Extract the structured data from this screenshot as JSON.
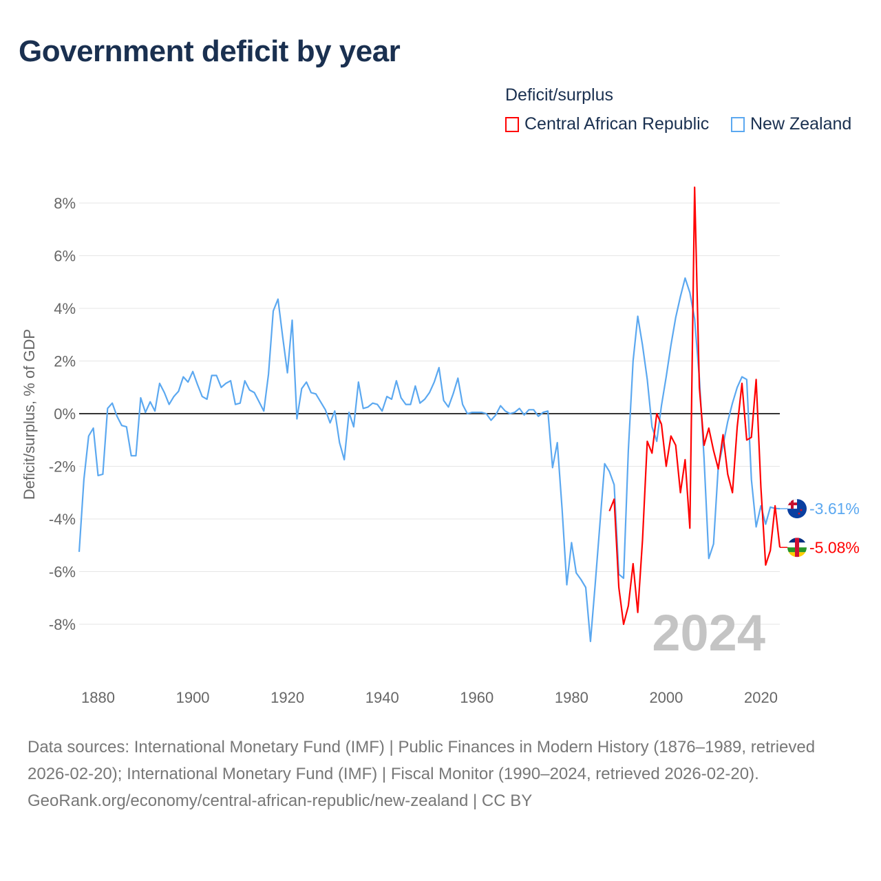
{
  "title": "Government deficit by year",
  "legend": {
    "title": "Deficit/surplus",
    "items": [
      {
        "label": "Central African Republic",
        "color": "#ff0000"
      },
      {
        "label": "New Zealand",
        "color": "#5ba8f0"
      }
    ]
  },
  "chart_data": {
    "type": "line",
    "title": "Government deficit by year",
    "xlabel": "",
    "ylabel": "Deficit/surplus, % of GDP",
    "xlim": [
      1876,
      2024
    ],
    "ylim": [
      -10,
      9
    ],
    "yticks": [
      8,
      6,
      4,
      2,
      0,
      -2,
      -4,
      -6,
      -8
    ],
    "ytick_labels": [
      "8%",
      "6%",
      "4%",
      "2%",
      "0%",
      "-2%",
      "-4%",
      "-6%",
      "-8%"
    ],
    "xticks": [
      1880,
      1900,
      1920,
      1940,
      1960,
      1980,
      2000,
      2020
    ],
    "xtick_labels": [
      "1880",
      "1900",
      "1920",
      "1940",
      "1960",
      "1980",
      "2000",
      "2020"
    ],
    "grid": true,
    "legend_position": "top-right",
    "year_watermark": "2024",
    "series": [
      {
        "name": "New Zealand",
        "color": "#5ba8f0",
        "start_year": 1876,
        "end_label": "-3.61%",
        "flag": "new-zealand",
        "values": [
          -5.25,
          -2.5,
          -0.85,
          -0.55,
          -2.35,
          -2.3,
          0.2,
          0.4,
          -0.1,
          -0.45,
          -0.5,
          -1.6,
          -1.6,
          0.6,
          0.05,
          0.45,
          0.1,
          1.15,
          0.8,
          0.35,
          0.65,
          0.85,
          1.4,
          1.2,
          1.6,
          1.1,
          0.65,
          0.55,
          1.45,
          1.45,
          1.0,
          1.15,
          1.25,
          0.35,
          0.4,
          1.25,
          0.9,
          0.8,
          0.45,
          0.1,
          1.5,
          3.9,
          4.35,
          2.9,
          1.55,
          3.55,
          -0.2,
          0.95,
          1.2,
          0.8,
          0.75,
          0.45,
          0.15,
          -0.35,
          0.1,
          -1.1,
          -1.75,
          0.05,
          -0.5,
          1.2,
          0.2,
          0.25,
          0.4,
          0.35,
          0.1,
          0.65,
          0.55,
          1.25,
          0.6,
          0.35,
          0.35,
          1.05,
          0.4,
          0.55,
          0.8,
          1.2,
          1.75,
          0.5,
          0.25,
          0.75,
          1.35,
          0.35,
          0.0,
          0.05,
          0.05,
          0.05,
          0.0,
          -0.25,
          -0.05,
          0.3,
          0.1,
          0.0,
          0.05,
          0.2,
          -0.05,
          0.15,
          0.15,
          -0.1,
          0.05,
          0.1,
          -2.05,
          -1.1,
          -3.6,
          -6.5,
          -4.9,
          -6.05,
          -6.3,
          -6.6,
          -8.65,
          -6.5,
          -4.2,
          -1.9,
          -2.2,
          -2.7,
          -6.1,
          -6.25,
          -1.4,
          2.0,
          3.7,
          2.6,
          1.3,
          -0.5,
          -1.05,
          0.3,
          1.4,
          2.6,
          3.65,
          4.45,
          5.15,
          4.6,
          3.6,
          1.35,
          -1.7,
          -5.5,
          -4.95,
          -2.0,
          -1.2,
          -0.3,
          0.4,
          1.0,
          1.4,
          1.3,
          -2.5,
          -4.3,
          -3.5,
          -4.2,
          -3.55,
          -3.6,
          -3.61
        ]
      },
      {
        "name": "Central African Republic",
        "color": "#ff0000",
        "start_year": 1988,
        "end_label": "-5.08%",
        "flag": "central-african-republic",
        "values": [
          -3.7,
          -3.25,
          -6.6,
          -8.0,
          -7.3,
          -5.7,
          -7.55,
          -4.8,
          -1.05,
          -1.5,
          0.0,
          -0.4,
          -2.0,
          -0.85,
          -1.2,
          -3.0,
          -1.75,
          -4.35,
          8.6,
          1.0,
          -1.2,
          -0.55,
          -1.4,
          -2.1,
          -0.8,
          -2.3,
          -3.0,
          -0.5,
          1.15,
          -1.0,
          -0.9,
          1.3,
          -2.8,
          -5.75,
          -5.2,
          -3.5,
          -5.08
        ]
      }
    ]
  },
  "footer": {
    "sources": "Data sources: International Monetary Fund (IMF) | Public Finances in Modern History (1876–1989, retrieved 2026-02-20); International Monetary Fund (IMF) | Fiscal Monitor (1990–2024, retrieved 2026-02-20).",
    "link": "GeoRank.org/economy/central-african-republic/new-zealand | CC BY"
  }
}
